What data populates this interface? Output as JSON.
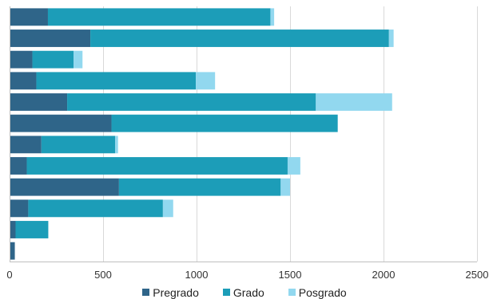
{
  "chart_data": {
    "type": "bar",
    "orientation": "horizontal",
    "stacked": true,
    "title": "",
    "xlabel": "",
    "ylabel": "",
    "xlim": [
      0,
      2500
    ],
    "xticks": [
      0,
      500,
      1000,
      1500,
      2000,
      2500
    ],
    "grid": "vertical",
    "legend_position": "bottom",
    "series": [
      {
        "name": "Pregrado",
        "color": "#2f6589",
        "values": [
          205,
          432,
          122,
          143,
          308,
          545,
          170,
          92,
          585,
          100,
          32,
          28
        ]
      },
      {
        "name": "Grado",
        "color": "#1c9db8",
        "values": [
          1190,
          1597,
          220,
          853,
          1330,
          1210,
          395,
          1395,
          865,
          720,
          175,
          0
        ]
      },
      {
        "name": "Posgrado",
        "color": "#92d8ef",
        "values": [
          20,
          25,
          48,
          103,
          408,
          0,
          15,
          68,
          50,
          55,
          0,
          0
        ]
      }
    ]
  }
}
